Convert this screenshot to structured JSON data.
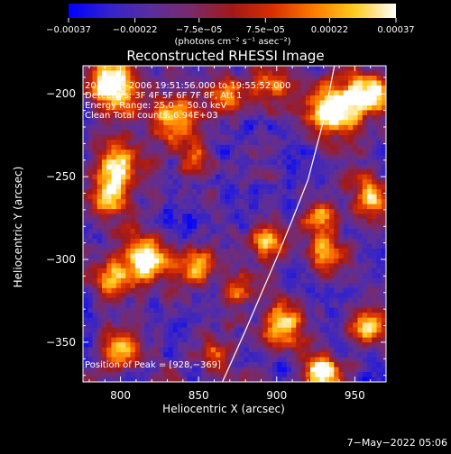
{
  "chart_data": {
    "type": "heatmap",
    "title": "Reconstructed RHESSI Image",
    "xlabel": "Heliocentric X (arcsec)",
    "ylabel": "Heliocentric Y (arcsec)",
    "xlim": [
      776,
      970
    ],
    "ylim": [
      -374,
      -183
    ],
    "x_ticks": [
      {
        "value": 800,
        "label": "800"
      },
      {
        "value": 850,
        "label": "850"
      },
      {
        "value": 900,
        "label": "900"
      },
      {
        "value": 950,
        "label": "950"
      }
    ],
    "y_ticks": [
      {
        "value": -200,
        "label": "−200"
      },
      {
        "value": -250,
        "label": "−250"
      },
      {
        "value": -300,
        "label": "−300"
      },
      {
        "value": -350,
        "label": "−350"
      }
    ],
    "colorbar": {
      "min": -0.00037,
      "max": 0.00037,
      "ticks": [
        {
          "value": -0.00037,
          "label": "−0.00037"
        },
        {
          "value": -0.00022,
          "label": "−0.00022"
        },
        {
          "value": -7.5e-05,
          "label": "−7.5e−05"
        },
        {
          "value": 7.5e-05,
          "label": "7.5e−05"
        },
        {
          "value": 0.00022,
          "label": "0.00022"
        },
        {
          "value": 0.00037,
          "label": "0.00037"
        }
      ],
      "unit_label": "(photons cm⁻² s⁻¹ asec⁻²)",
      "colors": [
        "#0000ff",
        "#3322cc",
        "#5a2e9e",
        "#7a2a6a",
        "#a21818",
        "#d83000",
        "#ff7a00",
        "#ffcc20",
        "#ffffff"
      ]
    },
    "annotations": [
      "20−Aug−2006 19:51:56.000 to 19:55:52.000",
      "Detectors: 3F 4F 5F 6F 7F 8F, Att 1",
      "Energy Range: 25.0 − 50.0 keV",
      "Clean     Total counts: 6.94E+03"
    ],
    "peak_label": "Position of Peak = [928,−369]",
    "peak": [
      928,
      -369
    ],
    "limb_curve": {
      "x": [
        860,
        870,
        880,
        890,
        900,
        910,
        920,
        930,
        937
      ],
      "y": [
        -385,
        -364,
        -343,
        -321,
        -299,
        -276,
        -252,
        -216,
        -183
      ]
    },
    "hot_spots": [
      {
        "x": 795,
        "y": -195,
        "sigma": 11,
        "amp": 0.95
      },
      {
        "x": 800,
        "y": -243,
        "sigma": 10,
        "amp": 0.75
      },
      {
        "x": 833,
        "y": -215,
        "sigma": 11,
        "amp": 0.7
      },
      {
        "x": 868,
        "y": -200,
        "sigma": 8,
        "amp": 0.55
      },
      {
        "x": 897,
        "y": -196,
        "sigma": 9,
        "amp": 0.55
      },
      {
        "x": 850,
        "y": -240,
        "sigma": 7,
        "amp": 0.5
      },
      {
        "x": 792,
        "y": -262,
        "sigma": 9,
        "amp": 0.65
      },
      {
        "x": 796,
        "y": -312,
        "sigma": 9,
        "amp": 0.6
      },
      {
        "x": 817,
        "y": -300,
        "sigma": 10,
        "amp": 0.8
      },
      {
        "x": 850,
        "y": -303,
        "sigma": 8,
        "amp": 0.65
      },
      {
        "x": 895,
        "y": -288,
        "sigma": 8,
        "amp": 0.7
      },
      {
        "x": 937,
        "y": -210,
        "sigma": 12,
        "amp": 0.9
      },
      {
        "x": 958,
        "y": -200,
        "sigma": 9,
        "amp": 0.85
      },
      {
        "x": 960,
        "y": -262,
        "sigma": 9,
        "amp": 0.7
      },
      {
        "x": 930,
        "y": -275,
        "sigma": 7,
        "amp": 0.55
      },
      {
        "x": 930,
        "y": -297,
        "sigma": 8,
        "amp": 0.6
      },
      {
        "x": 957,
        "y": -340,
        "sigma": 8,
        "amp": 0.65
      },
      {
        "x": 903,
        "y": -340,
        "sigma": 10,
        "amp": 0.75
      },
      {
        "x": 928,
        "y": -369,
        "sigma": 8,
        "amp": 1.0
      },
      {
        "x": 800,
        "y": -355,
        "sigma": 9,
        "amp": 0.6
      },
      {
        "x": 875,
        "y": -318,
        "sigma": 7,
        "amp": 0.5
      },
      {
        "x": 860,
        "y": -360,
        "sigma": 8,
        "amp": 0.45
      }
    ],
    "timestamp": "7−May−2022 05:06"
  }
}
